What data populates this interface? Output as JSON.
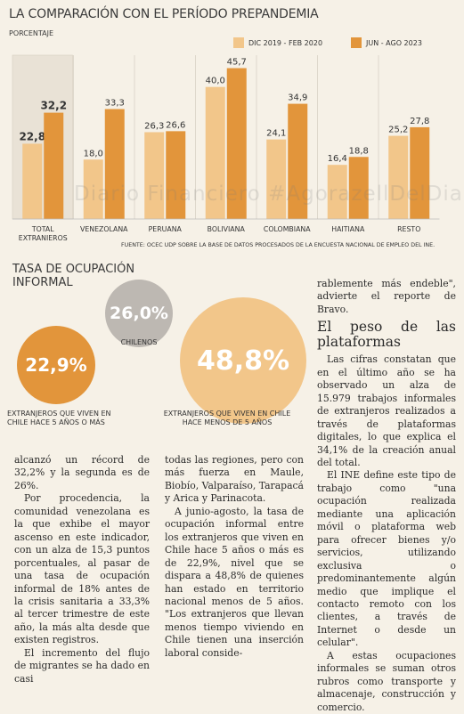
{
  "chart_data": {
    "type": "bar",
    "title": "LA COMPARACIÓN CON EL PERÍODO PREPANDEMIA",
    "ylabel": "PORCENTAJE",
    "categories": [
      "TOTAL EXTRANJEROS",
      "VENEZOLANA",
      "PERUANA",
      "BOLIVIANA",
      "COLOMBIANA",
      "HAITIANA",
      "RESTO"
    ],
    "series": [
      {
        "name": "DIC 2019 - FEB 2020",
        "values": [
          22.8,
          18.0,
          26.3,
          40.0,
          24.1,
          16.4,
          25.2
        ],
        "labels": [
          "22,8",
          "18,0",
          "26,3",
          "40,0",
          "24,1",
          "16,4",
          "25,2"
        ],
        "color": "#f2c68a"
      },
      {
        "name": "JUN - AGO 2023",
        "values": [
          32.2,
          33.3,
          26.6,
          45.7,
          34.9,
          18.8,
          27.8
        ],
        "labels": [
          "32,2",
          "33,3",
          "26,6",
          "45,7",
          "34,9",
          "18,8",
          "27,8"
        ],
        "color": "#e2953b"
      }
    ],
    "ylim": [
      0,
      48
    ],
    "legend": "top-right",
    "highlight_category": "TOTAL EXTRANJEROS",
    "source": "FUENTE: OCEC UDP SOBRE LA BASE DE DATOS PROCESADOS DE LA ENCUESTA NACIONAL DE EMPLEO DEL INE."
  },
  "watermark": "Diario Financiero #AgorazellDelDiariol.cl",
  "informal": {
    "title": "TASA DE OCUPACIÓN INFORMAL",
    "bubbles": [
      {
        "value": "26,0%",
        "label": "CHILENOS",
        "color": "#bdb8b2"
      },
      {
        "value": "22,9%",
        "label": "EXTRANJEROS QUE VIVEN EN CHILE HACE 5 AÑOS O MÁS",
        "color": "#e2953b"
      },
      {
        "value": "48,8%",
        "label": "EXTRANJEROS QUE VIVEN EN CHILE HACE MENOS DE 5 AÑOS",
        "color": "#f2c68a"
      }
    ]
  },
  "article": {
    "right_top": {
      "p1": "rablemente más endeble\", advierte el reporte de Bravo."
    },
    "subhead": "El peso de las plataformas",
    "right_bottom": {
      "p1": "Las cifras constatan que en el último año se ha observado un alza de 15.979 trabajos informales de extranjeros realizados a través de plataformas digitales, lo que explica el 34,1% de la creación anual del total.",
      "p2": "El INE define este tipo de trabajo como \"una ocupación realizada mediante una aplicación móvil o plataforma web para ofrecer bienes y/o servicios, utilizando exclusiva o predominantemente algún medio que implique el contacto remoto con los clientes, a través de Internet o desde un celular\".",
      "p3": "A estas ocupaciones informales se suman otros rubros como transporte y almacenaje, construcción y comercio."
    },
    "col1": {
      "p1": "alcanzó un récord de 32,2% y la segunda es de 26%.",
      "p2": "Por procedencia, la comunidad venezolana es la que exhibe el mayor ascenso en este indicador, con un alza de 15,3 puntos porcentuales, al pasar de una tasa de ocupación informal de 18% antes de la crisis sanitaria a 33,3% al tercer trimestre de este año, la más alta desde que existen registros.",
      "p3": "El incremento del flujo de migrantes se ha dado en casi"
    },
    "col2": {
      "p1": "todas las regiones, pero con más fuerza en Maule, Biobío, Valparaíso, Tarapacá y Arica y Parinacota.",
      "p2": "A junio-agosto, la tasa de ocupación informal entre los extranjeros que viven en Chile hace 5 años o más es de 22,9%, nivel que se dispara a 48,8% de quienes han estado en territorio nacional menos de 5 años. \"Los extranjeros que llevan menos tiempo viviendo en Chile tienen una inserción laboral conside-"
    }
  }
}
